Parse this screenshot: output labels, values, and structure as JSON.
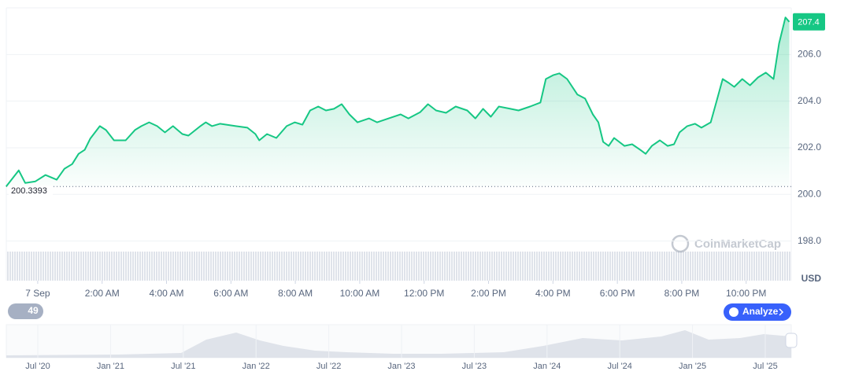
{
  "chart_data": {
    "type": "line",
    "color": "#16c784",
    "x": [
      -0.98,
      -0.59,
      -0.39,
      -0.07,
      0.24,
      0.59,
      0.83,
      1.07,
      1.27,
      1.46,
      1.63,
      1.93,
      2.12,
      2.37,
      2.73,
      3.02,
      3.22,
      3.46,
      3.71,
      3.95,
      4.2,
      4.49,
      4.68,
      5.05,
      5.22,
      5.41,
      5.66,
      6.15,
      6.51,
      6.76,
      6.88,
      7.12,
      7.41,
      7.73,
      7.98,
      8.22,
      8.46,
      8.71,
      8.95,
      9.2,
      9.44,
      9.68,
      9.93,
      10.29,
      10.54,
      10.9,
      11.27,
      11.51,
      11.88,
      12.12,
      12.37,
      12.68,
      12.98,
      13.34,
      13.59,
      13.83,
      14.07,
      14.32,
      14.68,
      14.93,
      15.29,
      15.61,
      15.78,
      16.02,
      16.2,
      16.44,
      16.76,
      17.0,
      17.24,
      17.41,
      17.56,
      17.73,
      17.9,
      18.22,
      18.46,
      18.71,
      18.88,
      19.07,
      19.32,
      19.56,
      19.76,
      19.93,
      20.17,
      20.41,
      20.61,
      20.9,
      21.07,
      21.27,
      21.46,
      21.63,
      21.88,
      22.12,
      22.37,
      22.61,
      22.85,
      23.02,
      23.22,
      23.34
    ],
    "values": [
      200.34,
      201.03,
      200.49,
      200.56,
      200.83,
      200.63,
      201.1,
      201.3,
      201.74,
      201.91,
      202.39,
      202.93,
      202.76,
      202.32,
      202.32,
      202.76,
      202.93,
      203.09,
      202.93,
      202.66,
      202.93,
      202.59,
      202.52,
      202.93,
      203.09,
      202.93,
      203.03,
      202.93,
      202.86,
      202.59,
      202.32,
      202.59,
      202.42,
      202.93,
      203.09,
      202.99,
      203.6,
      203.77,
      203.6,
      203.67,
      203.87,
      203.43,
      203.09,
      203.26,
      203.09,
      203.26,
      203.43,
      203.26,
      203.53,
      203.87,
      203.6,
      203.5,
      203.77,
      203.6,
      203.26,
      203.67,
      203.33,
      203.77,
      203.67,
      203.6,
      203.77,
      203.94,
      204.95,
      205.12,
      205.19,
      204.95,
      204.28,
      204.11,
      203.43,
      203.09,
      202.25,
      202.08,
      202.42,
      202.08,
      202.15,
      201.91,
      201.74,
      202.08,
      202.32,
      202.08,
      202.15,
      202.66,
      202.93,
      203.03,
      202.86,
      203.09,
      203.94,
      204.95,
      204.78,
      204.61,
      204.95,
      204.68,
      205.02,
      205.22,
      204.95,
      206.47,
      207.59,
      207.4
    ],
    "xlim": [
      -1,
      23.4
    ],
    "xticks": [
      {
        "value": 0,
        "label": "7 Sep"
      },
      {
        "value": 2,
        "label": "2:00 AM"
      },
      {
        "value": 4,
        "label": "4:00 AM"
      },
      {
        "value": 6,
        "label": "6:00 AM"
      },
      {
        "value": 8,
        "label": "8:00 AM"
      },
      {
        "value": 10,
        "label": "10:00 AM"
      },
      {
        "value": 12,
        "label": "12:00 PM"
      },
      {
        "value": 14,
        "label": "2:00 PM"
      },
      {
        "value": 16,
        "label": "4:00 PM"
      },
      {
        "value": 18,
        "label": "6:00 PM"
      },
      {
        "value": 20,
        "label": "8:00 PM"
      },
      {
        "value": 22,
        "label": "10:00 PM"
      }
    ],
    "ylim": [
      196.3,
      208
    ],
    "yticks": [
      {
        "value": 198,
        "label": "198.0"
      },
      {
        "value": 200,
        "label": "200.0"
      },
      {
        "value": 202,
        "label": "202.0"
      },
      {
        "value": 204,
        "label": "204.0"
      },
      {
        "value": 206,
        "label": "206.0"
      }
    ],
    "grid": true,
    "baseline": 200.3393,
    "last_price": 207.4,
    "currency": "USD",
    "watermark": "CoinMarketCap",
    "history_badge": "49",
    "analyze_button": "Analyze",
    "navigator_labels": [
      "Jul '20",
      "Jan '21",
      "Jul '21",
      "Jan '22",
      "Jul '22",
      "Jan '23",
      "Jul '23",
      "Jan '24",
      "Jul '24",
      "Jan '25",
      "Jul '25"
    ]
  }
}
